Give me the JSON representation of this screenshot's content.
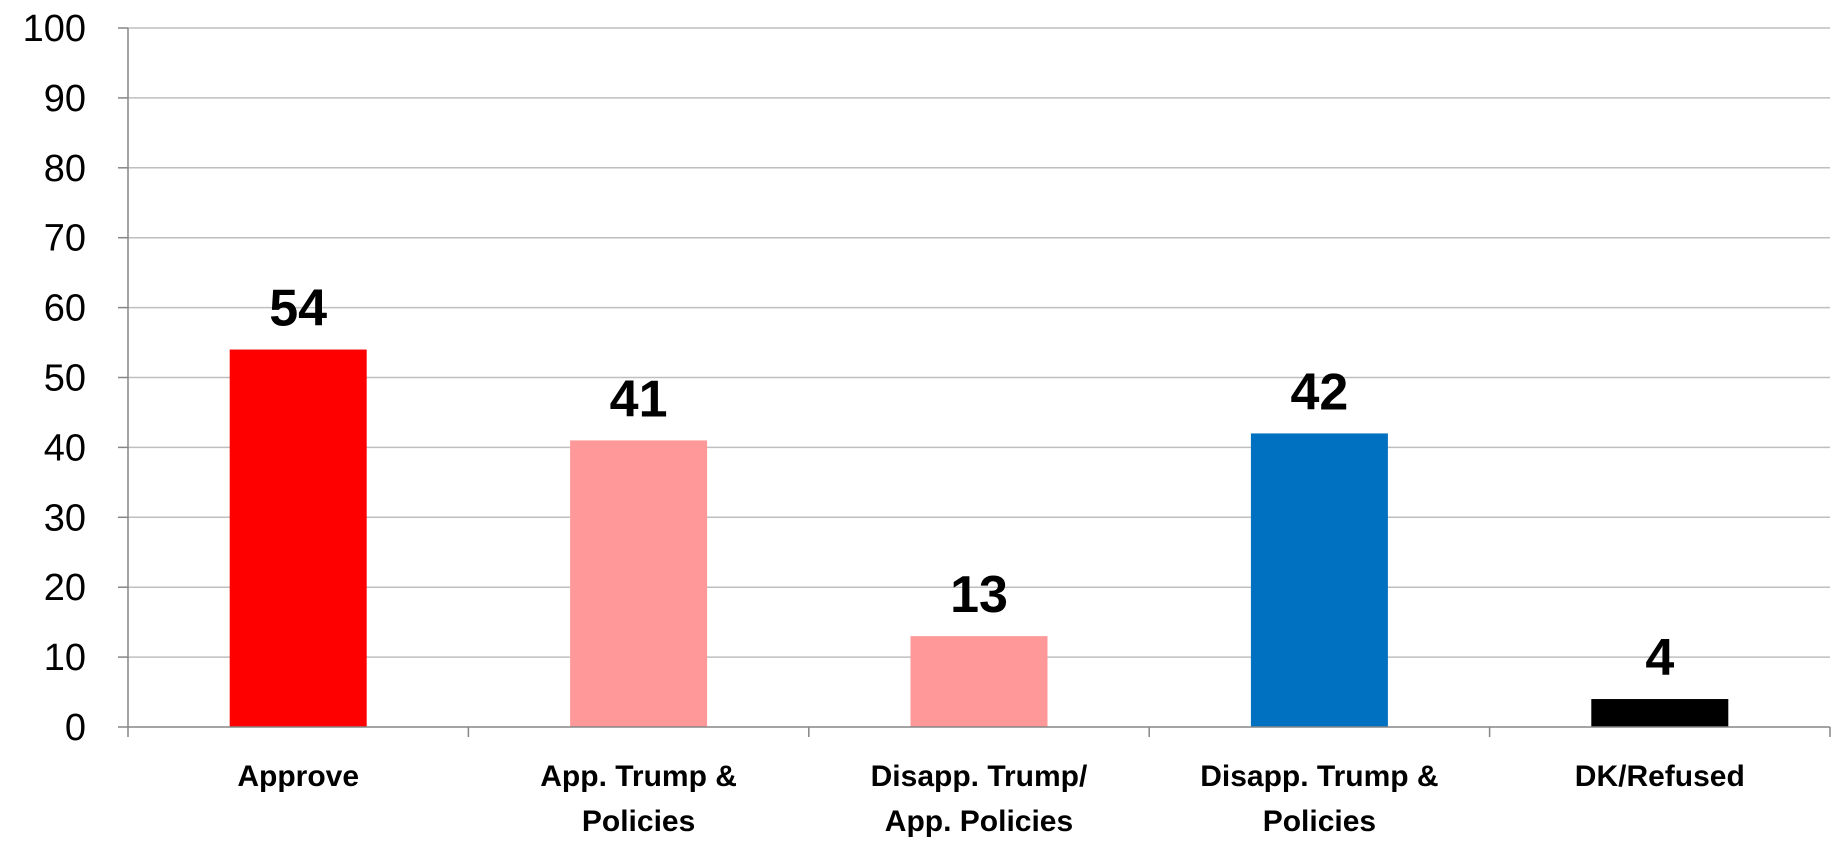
{
  "chart_data": {
    "type": "bar",
    "title": "",
    "xlabel": "",
    "ylabel": "",
    "ylim": [
      0,
      100
    ],
    "yticks": [
      0,
      10,
      20,
      30,
      40,
      50,
      60,
      70,
      80,
      90,
      100
    ],
    "grid": true,
    "legend": "none",
    "categories": [
      [
        "Approve"
      ],
      [
        "App. Trump &",
        "Policies"
      ],
      [
        "Disapp. Trump/",
        "App. Policies"
      ],
      [
        "Disapp. Trump &",
        "Policies"
      ],
      [
        "DK/Refused"
      ]
    ],
    "values": [
      54,
      41,
      13,
      42,
      4
    ],
    "colors": [
      "#ff0000",
      "#ff9999",
      "#ff9999",
      "#0070c0",
      "#000000"
    ]
  }
}
